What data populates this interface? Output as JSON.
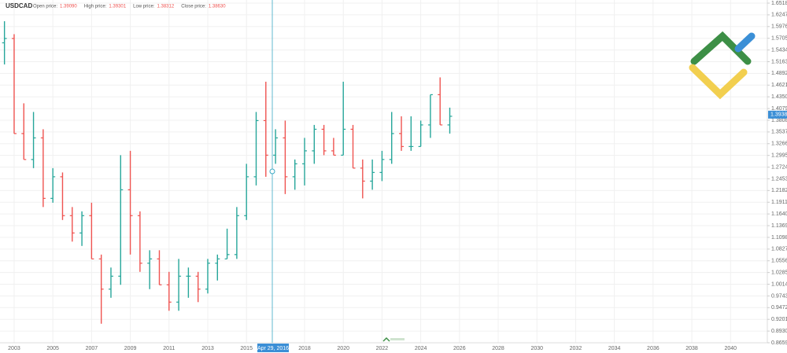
{
  "chart_data": {
    "type": "ohlc",
    "symbol": "USDCAD",
    "header": [
      {
        "label": "Open price:",
        "value": "1.39090"
      },
      {
        "label": "High price:",
        "value": "1.39301"
      },
      {
        "label": "Low price:",
        "value": "1.38312"
      },
      {
        "label": "Close price:",
        "value": "1.38630"
      }
    ],
    "crosshair_label": "Apr 29, 2016",
    "last_price": 1.39381,
    "up_color": "#26a69a",
    "down_color": "#ef5350",
    "grid": true,
    "xlim": [
      2002.27,
      2041.9
    ],
    "xticks": [
      2003,
      2005,
      2007,
      2009,
      2011,
      2013,
      2015,
      2018,
      2020,
      2022,
      2024,
      2026,
      2028,
      2030,
      2032,
      2034,
      2036,
      2038,
      2040
    ],
    "ylim": [
      0.8659,
      1.6518
    ],
    "yticks": [
      {
        "value": 1.6518,
        "label": "1.65180"
      },
      {
        "value": 1.6247,
        "label": "1.62470"
      },
      {
        "value": 1.5976,
        "label": "1.59760"
      },
      {
        "value": 1.5705,
        "label": "1.57050"
      },
      {
        "value": 1.5434,
        "label": "1.54340"
      },
      {
        "value": 1.5163,
        "label": "1.51630"
      },
      {
        "value": 1.4892,
        "label": "1.48920"
      },
      {
        "value": 1.4621,
        "label": "1.46210"
      },
      {
        "value": 1.435,
        "label": "1.43500"
      },
      {
        "value": 1.4079,
        "label": "1.40790"
      },
      {
        "value": 1.3808,
        "label": "1.38080"
      },
      {
        "value": 1.3537,
        "label": "1.35370"
      },
      {
        "value": 1.3266,
        "label": "1.32660"
      },
      {
        "value": 1.2995,
        "label": "1.29950"
      },
      {
        "value": 1.2724,
        "label": "1.27240"
      },
      {
        "value": 1.2453,
        "label": "1.24530"
      },
      {
        "value": 1.2182,
        "label": "1.21820"
      },
      {
        "value": 1.1911,
        "label": "1.19110"
      },
      {
        "value": 1.164,
        "label": "1.16400"
      },
      {
        "value": 1.1369,
        "label": "1.13690"
      },
      {
        "value": 1.1098,
        "label": "1.10980"
      },
      {
        "value": 1.0827,
        "label": "1.08270"
      },
      {
        "value": 1.0556,
        "label": "1.05560"
      },
      {
        "value": 1.0285,
        "label": "1.02850"
      },
      {
        "value": 1.0014,
        "label": "1.00140"
      },
      {
        "value": 0.9743,
        "label": "0.97430"
      },
      {
        "value": 0.9472,
        "label": "0.94720"
      },
      {
        "value": 0.9201,
        "label": "0.92010"
      },
      {
        "value": 0.893,
        "label": "0.89300"
      },
      {
        "value": 0.8659,
        "label": "0.86590"
      }
    ],
    "x": [
      2002.5,
      2003.0,
      2003.5,
      2004.0,
      2004.5,
      2005.0,
      2005.5,
      2006.0,
      2006.5,
      2007.0,
      2007.5,
      2008.0,
      2008.5,
      2009.0,
      2009.5,
      2010.0,
      2010.5,
      2011.0,
      2011.5,
      2012.0,
      2012.5,
      2013.0,
      2013.5,
      2014.0,
      2014.5,
      2015.0,
      2015.5,
      2016.0,
      2016.5,
      2017.0,
      2017.5,
      2018.0,
      2018.5,
      2019.0,
      2019.5,
      2020.0,
      2020.5,
      2021.0,
      2021.5,
      2022.0,
      2022.5,
      2023.0,
      2023.5,
      2024.0,
      2024.5,
      2025.0,
      2025.5
    ],
    "open": [
      1.56,
      1.57,
      1.35,
      1.29,
      1.34,
      1.2,
      1.25,
      1.16,
      1.12,
      1.16,
      1.06,
      0.99,
      1.02,
      1.22,
      1.16,
      1.05,
      1.06,
      1.0,
      0.96,
      1.02,
      1.02,
      0.99,
      1.05,
      1.06,
      1.07,
      1.16,
      1.25,
      1.38,
      1.3,
      1.34,
      1.25,
      1.28,
      1.31,
      1.36,
      1.31,
      1.3,
      1.36,
      1.27,
      1.24,
      1.26,
      1.29,
      1.35,
      1.32,
      1.32,
      1.37,
      1.44,
      1.37
    ],
    "high": [
      1.61,
      1.58,
      1.42,
      1.4,
      1.36,
      1.27,
      1.26,
      1.18,
      1.17,
      1.19,
      1.07,
      1.04,
      1.3,
      1.31,
      1.17,
      1.08,
      1.08,
      1.03,
      1.06,
      1.04,
      1.03,
      1.06,
      1.07,
      1.13,
      1.18,
      1.28,
      1.4,
      1.47,
      1.36,
      1.38,
      1.29,
      1.34,
      1.37,
      1.37,
      1.34,
      1.47,
      1.37,
      1.29,
      1.29,
      1.31,
      1.4,
      1.39,
      1.39,
      1.38,
      1.44,
      1.48,
      1.41
    ],
    "low": [
      1.51,
      1.35,
      1.29,
      1.27,
      1.18,
      1.19,
      1.15,
      1.1,
      1.09,
      1.06,
      0.91,
      0.97,
      1.0,
      1.07,
      1.03,
      0.99,
      1.0,
      0.94,
      0.94,
      0.97,
      0.96,
      0.98,
      1.01,
      1.06,
      1.06,
      1.15,
      1.23,
      1.25,
      1.28,
      1.21,
      1.22,
      1.23,
      1.28,
      1.3,
      1.3,
      1.3,
      1.27,
      1.2,
      1.22,
      1.24,
      1.28,
      1.31,
      1.31,
      1.32,
      1.34,
      1.37,
      1.35
    ],
    "close": [
      1.57,
      1.35,
      1.29,
      1.34,
      1.2,
      1.25,
      1.16,
      1.12,
      1.16,
      1.06,
      0.99,
      1.02,
      1.22,
      1.16,
      1.05,
      1.06,
      1.0,
      0.96,
      1.02,
      1.02,
      0.99,
      1.05,
      1.06,
      1.07,
      1.16,
      1.25,
      1.38,
      1.3,
      1.34,
      1.25,
      1.28,
      1.31,
      1.36,
      1.31,
      1.3,
      1.36,
      1.27,
      1.24,
      1.26,
      1.29,
      1.35,
      1.32,
      1.32,
      1.37,
      1.44,
      1.37,
      1.39
    ]
  }
}
